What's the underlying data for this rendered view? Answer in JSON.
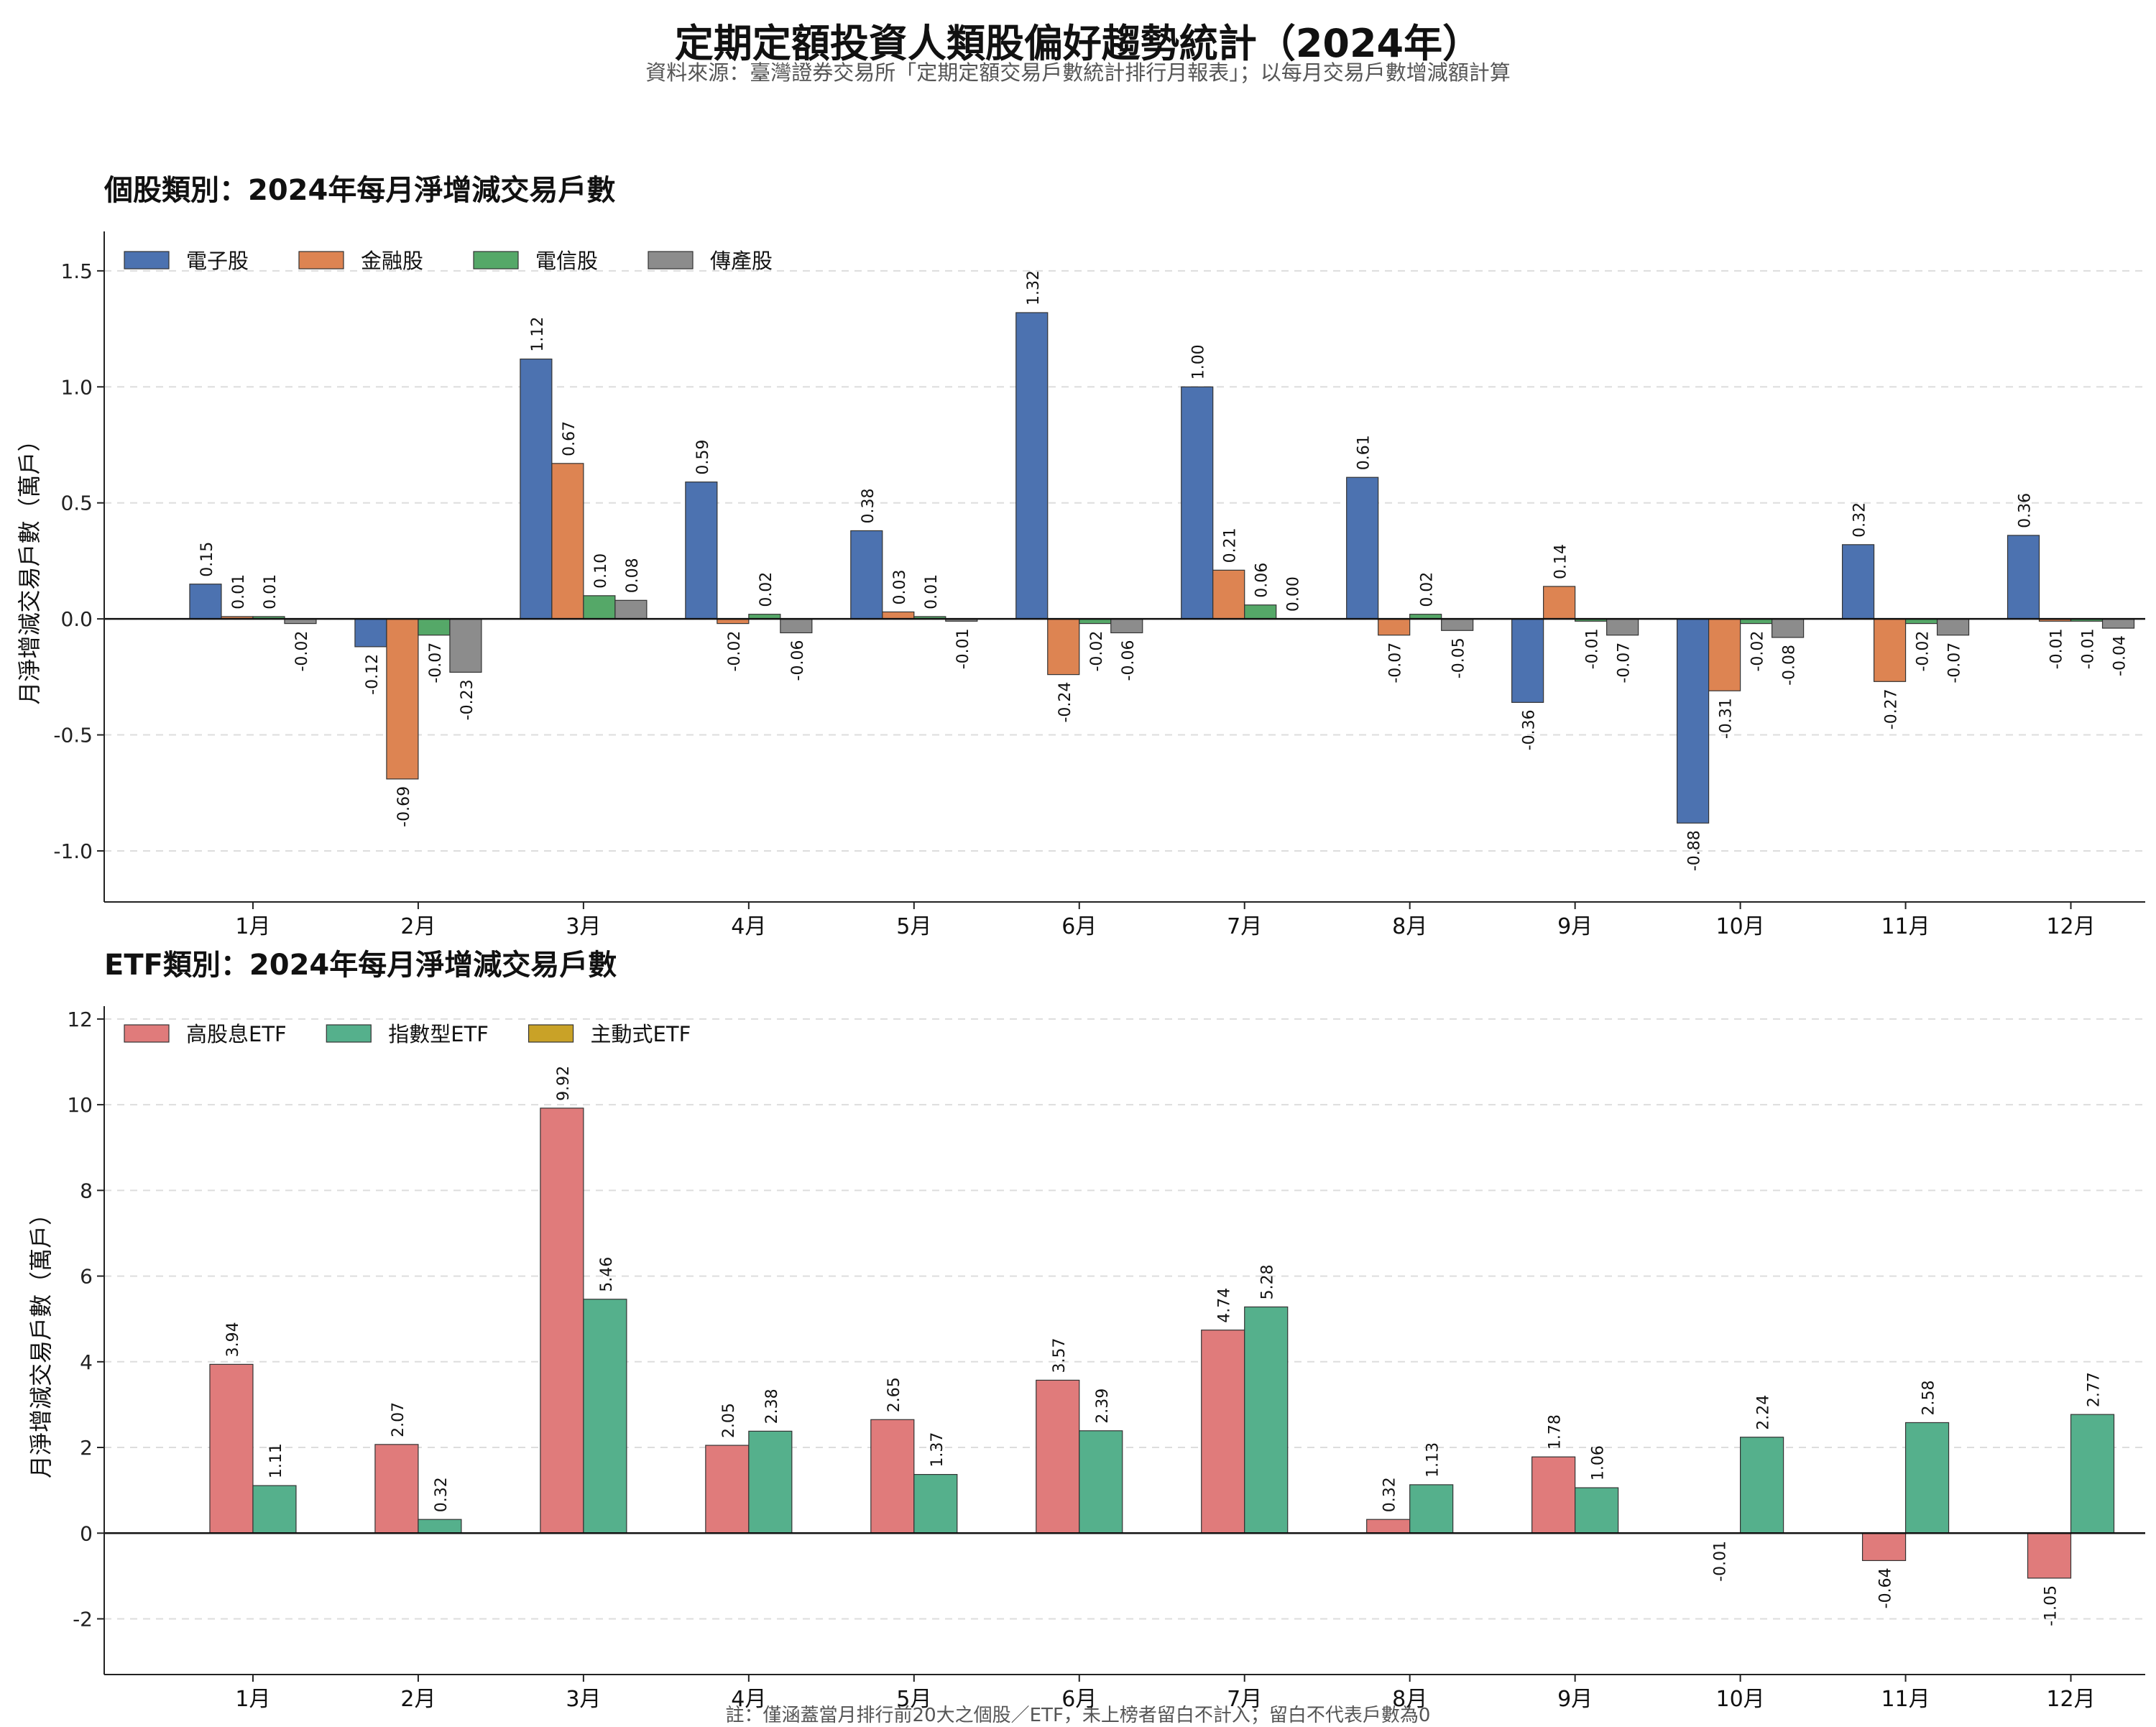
{
  "title": "定期定額投資人類股偏好趨勢統計（2024年）",
  "subtitle": "資料來源：臺灣證券交易所「定期定額交易戶數統計排行月報表」；以每月交易戶數增減額計算",
  "footnote": "註：僅涵蓋當月排行前20大之個股／ETF，未上榜者留白不計入；留白不代表戶數為0",
  "chart_data": [
    {
      "type": "bar",
      "title": "個股類別：2024年每月淨增減交易戶數",
      "xlabel": "",
      "ylabel": "月淨增減交易戶數（萬戶）",
      "ylim": [
        -1.22,
        1.67
      ],
      "yticks": [
        -1.0,
        -0.5,
        0.0,
        0.5,
        1.0,
        1.5
      ],
      "ytick_labels": [
        "-1.0",
        "-0.5",
        "0.0",
        "0.5",
        "1.0",
        "1.5"
      ],
      "grid": true,
      "legend_position": "top-left",
      "categories": [
        "1月",
        "2月",
        "3月",
        "4月",
        "5月",
        "6月",
        "7月",
        "8月",
        "9月",
        "10月",
        "11月",
        "12月"
      ],
      "series": [
        {
          "name": "電子股",
          "color": "#4c72b0",
          "values": [
            0.15,
            -0.12,
            1.12,
            0.59,
            0.38,
            1.32,
            1.0,
            0.61,
            -0.36,
            -0.88,
            0.32,
            0.36
          ]
        },
        {
          "name": "金融股",
          "color": "#dd8452",
          "values": [
            0.01,
            -0.69,
            0.67,
            -0.02,
            0.03,
            -0.24,
            0.21,
            -0.07,
            0.14,
            -0.31,
            -0.27,
            -0.01
          ]
        },
        {
          "name": "電信股",
          "color": "#55a868",
          "values": [
            0.01,
            -0.07,
            0.1,
            0.02,
            0.01,
            -0.02,
            0.06,
            0.02,
            -0.01,
            -0.02,
            -0.02,
            -0.01
          ]
        },
        {
          "name": "傳產股",
          "color": "#8c8c8c",
          "values": [
            -0.02,
            -0.23,
            0.08,
            -0.06,
            -0.01,
            -0.06,
            0.0,
            -0.05,
            -0.07,
            -0.08,
            -0.07,
            -0.04
          ]
        }
      ]
    },
    {
      "type": "bar",
      "title": "ETF類別：2024年每月淨增減交易戶數",
      "xlabel": "",
      "ylabel": "月淨增減交易戶數（萬戶）",
      "ylim": [
        -3.3,
        12.3
      ],
      "yticks": [
        -2,
        0,
        2,
        4,
        6,
        8,
        10,
        12
      ],
      "ytick_labels": [
        "-2",
        "0",
        "2",
        "4",
        "6",
        "8",
        "10",
        "12"
      ],
      "grid": true,
      "legend_position": "top-left",
      "categories": [
        "1月",
        "2月",
        "3月",
        "4月",
        "5月",
        "6月",
        "7月",
        "8月",
        "9月",
        "10月",
        "11月",
        "12月"
      ],
      "series": [
        {
          "name": "高股息ETF",
          "color": "#e07b7b",
          "values": [
            3.94,
            2.07,
            9.92,
            2.05,
            2.65,
            3.57,
            4.74,
            0.32,
            1.78,
            -0.01,
            -0.64,
            -1.05
          ]
        },
        {
          "name": "指數型ETF",
          "color": "#55b08c",
          "values": [
            1.11,
            0.32,
            5.46,
            2.38,
            1.37,
            2.39,
            5.28,
            1.13,
            1.06,
            2.24,
            2.58,
            2.77
          ]
        },
        {
          "name": "主動式ETF",
          "color": "#c9a227",
          "values": [
            null,
            null,
            null,
            null,
            null,
            null,
            null,
            null,
            null,
            null,
            null,
            null
          ]
        }
      ]
    }
  ]
}
